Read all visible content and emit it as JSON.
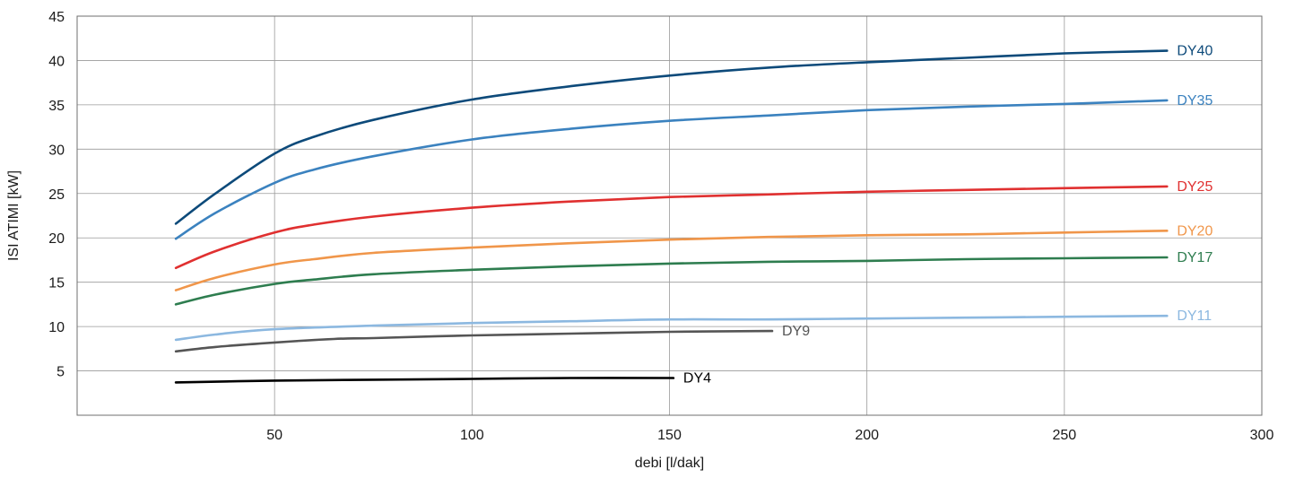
{
  "chart_data": {
    "type": "line",
    "title": "",
    "xlabel": "debi [l/dak]",
    "ylabel": "ISI ATIMI [kW]",
    "xlim": [
      0,
      300
    ],
    "ylim": [
      0,
      45
    ],
    "x_ticks": [
      50,
      100,
      150,
      200,
      250,
      300
    ],
    "y_ticks": [
      5,
      10,
      15,
      20,
      25,
      30,
      35,
      40,
      45
    ],
    "grid": true,
    "legend": "inline labels at line ends",
    "series": [
      {
        "name": "DY40",
        "color": "#0d4a7a",
        "x": [
          25,
          35,
          50,
          60,
          75,
          100,
          125,
          150,
          175,
          200,
          225,
          250,
          276
        ],
        "y": [
          21.6,
          25.0,
          29.5,
          31.4,
          33.3,
          35.6,
          37.1,
          38.3,
          39.2,
          39.8,
          40.3,
          40.8,
          41.1
        ]
      },
      {
        "name": "DY35",
        "color": "#3b82bf",
        "x": [
          25,
          35,
          50,
          60,
          75,
          100,
          125,
          150,
          175,
          200,
          225,
          250,
          276
        ],
        "y": [
          19.9,
          22.8,
          26.2,
          27.7,
          29.2,
          31.1,
          32.3,
          33.2,
          33.8,
          34.4,
          34.8,
          35.1,
          35.5
        ]
      },
      {
        "name": "DY25",
        "color": "#e03030",
        "x": [
          25,
          35,
          50,
          60,
          75,
          100,
          125,
          150,
          175,
          200,
          225,
          250,
          276
        ],
        "y": [
          16.6,
          18.5,
          20.6,
          21.5,
          22.4,
          23.4,
          24.1,
          24.6,
          24.9,
          25.2,
          25.4,
          25.6,
          25.8
        ]
      },
      {
        "name": "DY20",
        "color": "#f0964a",
        "x": [
          25,
          35,
          50,
          60,
          75,
          100,
          125,
          150,
          175,
          200,
          225,
          250,
          276
        ],
        "y": [
          14.1,
          15.5,
          17.0,
          17.6,
          18.3,
          18.9,
          19.4,
          19.8,
          20.1,
          20.3,
          20.4,
          20.6,
          20.8
        ]
      },
      {
        "name": "DY17",
        "color": "#2e7d4f",
        "x": [
          25,
          35,
          50,
          60,
          75,
          100,
          125,
          150,
          175,
          200,
          225,
          250,
          276
        ],
        "y": [
          12.5,
          13.6,
          14.8,
          15.3,
          15.9,
          16.4,
          16.8,
          17.1,
          17.3,
          17.4,
          17.6,
          17.7,
          17.8
        ]
      },
      {
        "name": "DY11",
        "color": "#8cb8e0",
        "x": [
          25,
          35,
          50,
          75,
          100,
          125,
          150,
          175,
          200,
          225,
          250,
          276
        ],
        "y": [
          8.5,
          9.1,
          9.7,
          10.1,
          10.4,
          10.6,
          10.8,
          10.8,
          10.9,
          11.0,
          11.1,
          11.2
        ]
      },
      {
        "name": "DY9",
        "color": "#555555",
        "x": [
          25,
          35,
          50,
          65,
          75,
          100,
          125,
          150,
          176
        ],
        "y": [
          7.2,
          7.7,
          8.2,
          8.6,
          8.7,
          9.0,
          9.2,
          9.4,
          9.5
        ]
      },
      {
        "name": "DY4",
        "color": "#000000",
        "x": [
          25,
          50,
          75,
          100,
          125,
          151
        ],
        "y": [
          3.7,
          3.9,
          4.0,
          4.1,
          4.2,
          4.2
        ]
      }
    ]
  }
}
